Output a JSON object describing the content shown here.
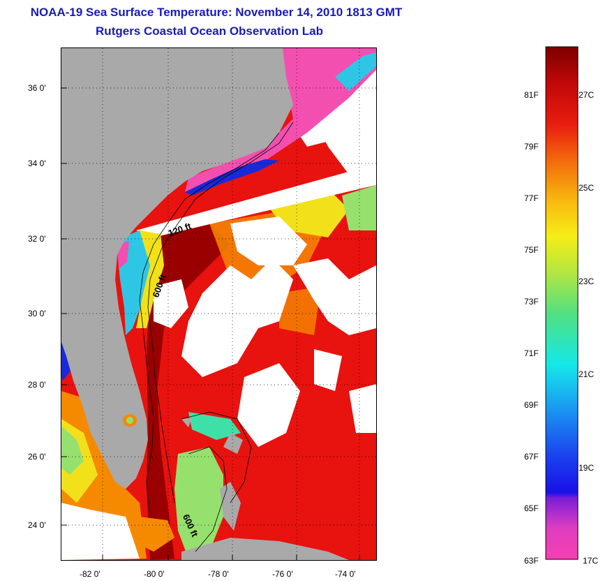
{
  "header": {
    "title": "NOAA-19 Sea Surface Temperature:  November 14, 2010 1813 GMT",
    "subtitle": "Rutgers Coastal Ocean Observation Lab"
  },
  "map": {
    "lat_labels": [
      "36 0'",
      "34 0'",
      "32 0'",
      "30 0'",
      "28 0'",
      "26 0'",
      "24 0'"
    ],
    "lon_labels": [
      "-82 0'",
      "-80 0'",
      "-78 0'",
      "-76 0'",
      "-74 0'"
    ],
    "contour_labels": [
      "120 ft",
      "600 ft",
      "600 ft"
    ],
    "colors": {
      "land": "#a9a9a9",
      "no_data": "#ffffff",
      "warm": "#e8120e",
      "hot": "#9a0000",
      "orange": "#f58a00",
      "yellow": "#f2e11a",
      "green": "#96e06e",
      "cyan": "#2fc6e6",
      "blue": "#1a2ad8",
      "magenta": "#f34fb0"
    }
  },
  "colorbar": {
    "fahrenheit_labels": [
      "81F",
      "79F",
      "77F",
      "75F",
      "73F",
      "71F",
      "69F",
      "67F",
      "65F",
      "63F"
    ],
    "celsius_labels": [
      "27C",
      "25C",
      "23C",
      "21C",
      "19C",
      "17C"
    ],
    "stops": [
      "#f53fb0",
      "#c02fd0",
      "#6a1ed8",
      "#1a1ae0",
      "#1a58ef",
      "#16a8f0",
      "#14e6e6",
      "#3ae0a0",
      "#7ae060",
      "#c6e83a",
      "#f5ee16",
      "#f8c40e",
      "#f58a0a",
      "#f0520c",
      "#e61a10",
      "#c20a08",
      "#800000"
    ]
  }
}
